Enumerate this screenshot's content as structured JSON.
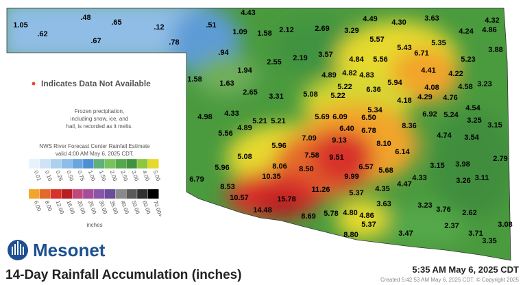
{
  "title": "14-Day Rainfall Accumulation (inches)",
  "timestamp": "5:35 AM May 6, 2025 CDT",
  "created": "Created 5:42:53 AM May 6, 2025 CDT. © Copyright 2025",
  "logo": "Mesonet",
  "missing_note": "Indicates Data Not Available",
  "frozen_note": [
    "Frozen precipitation,",
    "including snow, ice, and",
    "hail, is recorded as it melts."
  ],
  "legend": {
    "heading": [
      "NWS River Forecast Center Rainfall Estimate",
      "valid 4:00 AM May 6, 2025 CDT."
    ],
    "unit": "inches",
    "row1": {
      "labels": [
        "0.01",
        "0.10",
        "0.25",
        "0.50",
        "0.75",
        "1.00",
        "1.50",
        "2.00",
        "2.50",
        "3.00",
        "4.00",
        "5.00"
      ],
      "colors": [
        "#e8f2fb",
        "#cfe3f6",
        "#aed0ef",
        "#8dbde8",
        "#6aa6de",
        "#4a8fd3",
        "#5fb07a",
        "#76c25c",
        "#55a84a",
        "#3f9340",
        "#8fc640",
        "#e6d92e"
      ]
    },
    "row2": {
      "labels": [
        "6.00",
        "8.00",
        "12.00",
        "16.00",
        "20.00",
        "25.00",
        "30.00",
        "35.00",
        "40.00",
        "50.00",
        "60.00",
        "70.00+"
      ],
      "colors": [
        "#f2a42c",
        "#e46a2a",
        "#d8302a",
        "#b81e22",
        "#c0487a",
        "#a64c9a",
        "#8a56a8",
        "#6a4e9a",
        "#8a8a8a",
        "#5a5a5a",
        "#303030",
        "#000000"
      ]
    }
  },
  "stations": [
    "1.05",
    ".62",
    ".48",
    ".67",
    ".65",
    ".12",
    ".78",
    "4.43",
    ".51",
    "1.09",
    "1.58",
    "2.12",
    "2.69",
    "3.29",
    "4.49",
    "4.30",
    "3.63",
    "4.32",
    "4.24",
    "4.86",
    "5.57",
    "5.35",
    ".94",
    "2.55",
    "2.19",
    "3.57",
    "4.84",
    "5.56",
    "5.43",
    "6.71",
    "5.23",
    "3.88",
    "1.94",
    "4.41",
    "4.22",
    "1.58",
    "1.63",
    "4.89",
    "4.82",
    "4.83",
    "5.94",
    "4.08",
    "4.58",
    "3.23",
    "2.65",
    "3.31",
    "5.08",
    "5.22",
    "5.22",
    "6.36",
    "4.18",
    "4.29",
    "4.76",
    "4.54",
    "4.33",
    "5.34",
    "6.92",
    "5.24",
    "3.25",
    "3.15",
    "4.98",
    "5.21",
    "5.21",
    "5.69",
    "6.09",
    "6.50",
    "6.40",
    "6.78",
    "8.36",
    "4.74",
    "3.54",
    "5.56",
    "4.89",
    "7.09",
    "9.13",
    "8.10",
    "6.14",
    "2.79",
    "5.96",
    "5.08",
    "7.58",
    "9.51",
    "6.57",
    "5.68",
    "3.15",
    "3.98",
    "5.96",
    "8.06",
    "8.50",
    "4.33",
    "6.79",
    "10.35",
    "9.99",
    "4.47",
    "3.26",
    "3.11",
    "8.53",
    "11.26",
    "4.35",
    "10.57",
    "15.78",
    "5.37",
    "3.63",
    "3.23",
    "3.76",
    "2.62",
    "14.48",
    "8.69",
    "5.78",
    "4.80",
    "4.86",
    "3.08",
    "5.37",
    "2.37",
    "8.80",
    "3.47",
    "3.71",
    "3.35"
  ]
}
